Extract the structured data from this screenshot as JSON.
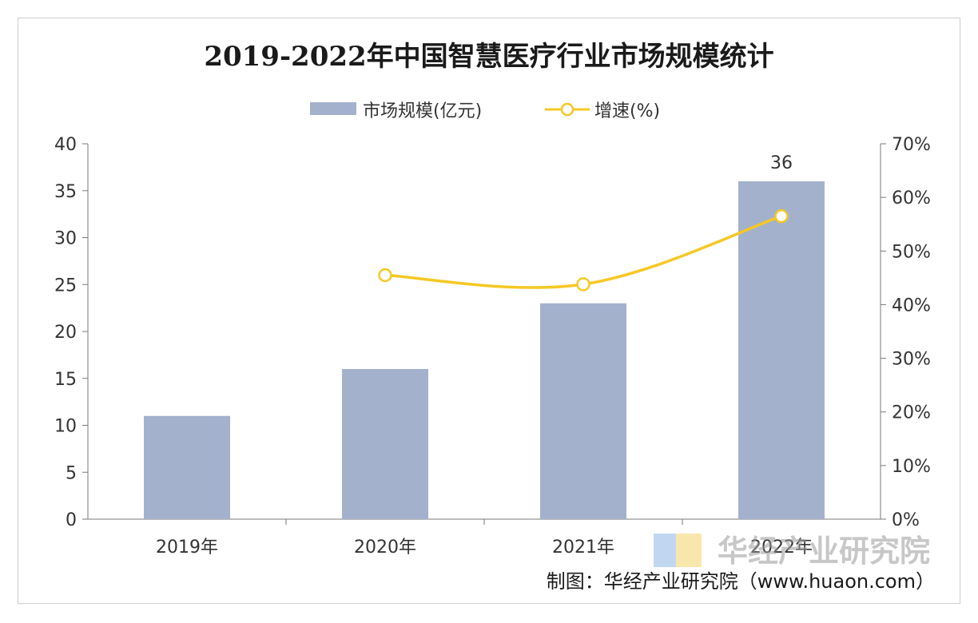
{
  "chart_data": {
    "type": "bar",
    "title": "2019-2022年中国智慧医疗行业市场规模统计",
    "categories": [
      "2019年",
      "2020年",
      "2021年",
      "2022年"
    ],
    "series": [
      {
        "name": "市场规模(亿元)",
        "type": "bar",
        "axis": "left",
        "values": [
          11,
          16,
          23,
          36
        ],
        "color": "#a3b1cd"
      },
      {
        "name": "增速(%)",
        "type": "line",
        "axis": "right",
        "values": [
          null,
          45.5,
          43.8,
          56.5
        ],
        "color": "#f5c824"
      }
    ],
    "data_labels": [
      {
        "series": "市场规模(亿元)",
        "category": "2022年",
        "text": "36"
      }
    ],
    "y_left": {
      "min": 0,
      "max": 40,
      "step": 5,
      "ticks": [
        "0",
        "5",
        "10",
        "15",
        "20",
        "25",
        "30",
        "35",
        "40"
      ]
    },
    "y_right": {
      "min": 0,
      "max": 70,
      "step": 10,
      "ticks": [
        "0%",
        "10%",
        "20%",
        "30%",
        "40%",
        "50%",
        "60%",
        "70%"
      ]
    },
    "legend_position": "top-center",
    "grid": false
  },
  "watermark": "华经产业研究院",
  "source": "制图：华经产业研究院（www.huaon.com）"
}
